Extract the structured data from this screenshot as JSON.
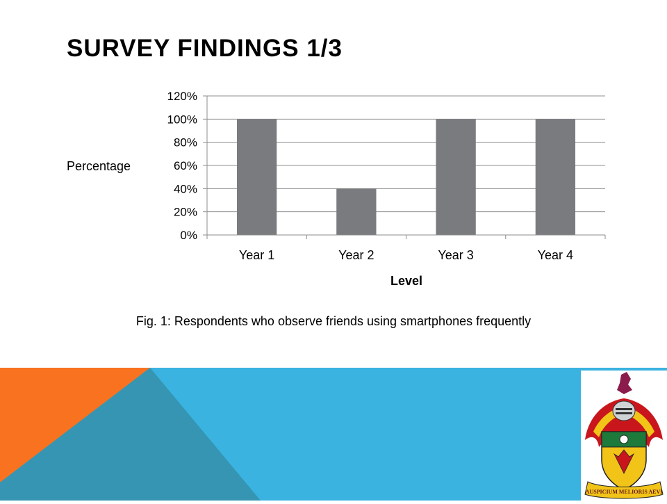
{
  "slide": {
    "title": "SURVEY FINDINGS 1/3",
    "caption": "Fig. 1: Respondents who observe friends using smartphones frequently"
  },
  "colors": {
    "bar": "#7a7b7f",
    "grid": "#8c8c8c",
    "footer_blue": "#3ab3e0",
    "footer_orange": "#f8721f",
    "footer_teal": "#3595b3"
  },
  "crest": {
    "motto": "AUSPICIUM MELIORIS AEVI"
  },
  "chart_data": {
    "type": "bar",
    "categories": [
      "Year 1",
      "Year 2",
      "Year 3",
      "Year 4"
    ],
    "values": [
      100,
      40,
      100,
      100
    ],
    "value_unit": "%",
    "xlabel": "Level",
    "ylabel": "Percentage",
    "ylim": [
      0,
      120
    ],
    "yticks": [
      0,
      20,
      40,
      60,
      80,
      100,
      120
    ],
    "ytick_labels": [
      "0%",
      "20%",
      "40%",
      "60%",
      "80%",
      "100%",
      "120%"
    ],
    "grid": true,
    "legend": "none"
  }
}
